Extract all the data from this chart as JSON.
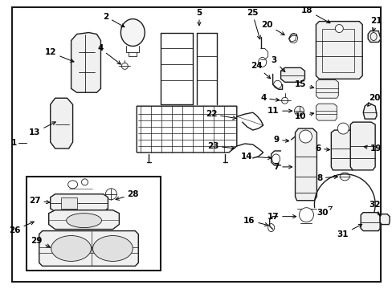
{
  "bg_color": "#ffffff",
  "border_color": "#000000",
  "line_color": "#1a1a1a",
  "label_color": "#000000",
  "fig_width": 4.89,
  "fig_height": 3.6,
  "dpi": 100
}
